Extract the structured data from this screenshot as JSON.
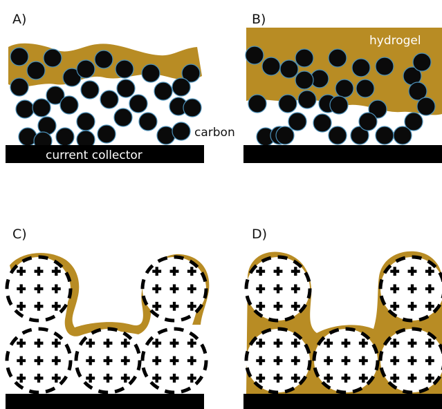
{
  "panels": [
    {
      "id": "A",
      "label": "A)"
    },
    {
      "id": "B",
      "label": "B)"
    },
    {
      "id": "C",
      "label": "C)"
    },
    {
      "id": "D",
      "label": "D)"
    }
  ],
  "annotations": {
    "current_collector": "current collector",
    "carbon": "carbon",
    "hydrogel": "hydrogel"
  },
  "colors": {
    "hydrogel": "#b88c24",
    "particle": "#0a0a0a",
    "particle_outline": "#4a8fb8",
    "collector": "#000000",
    "collector_text": "#ffffff",
    "background": "#ffffff"
  }
}
